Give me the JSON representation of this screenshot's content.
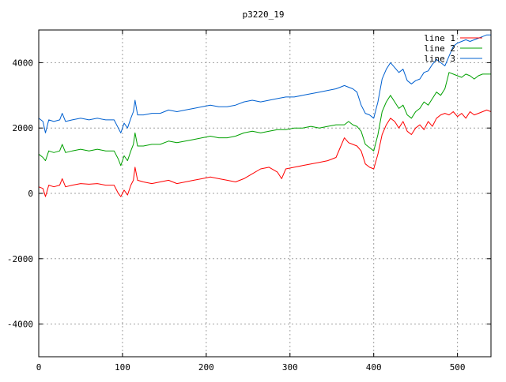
{
  "chart_data": {
    "type": "line",
    "title": "p3220_19",
    "xlabel": "",
    "ylabel": "",
    "xlim": [
      0,
      540
    ],
    "ylim": [
      -5000,
      5000
    ],
    "xticks": [
      0,
      100,
      200,
      300,
      400,
      500
    ],
    "yticks": [
      -4000,
      -2000,
      0,
      2000,
      4000
    ],
    "grid": true,
    "legend_position": "top-right",
    "series": [
      {
        "name": "line 1",
        "color": "#ff0000",
        "x": [
          0,
          5,
          8,
          12,
          18,
          25,
          28,
          32,
          40,
          50,
          60,
          70,
          80,
          90,
          95,
          98,
          102,
          106,
          110,
          113,
          115,
          118,
          125,
          135,
          145,
          155,
          165,
          175,
          185,
          195,
          205,
          215,
          225,
          235,
          245,
          255,
          265,
          275,
          285,
          290,
          295,
          305,
          315,
          325,
          335,
          345,
          355,
          360,
          365,
          370,
          375,
          380,
          385,
          390,
          395,
          400,
          405,
          410,
          415,
          420,
          425,
          430,
          435,
          440,
          445,
          450,
          455,
          460,
          465,
          470,
          475,
          480,
          485,
          490,
          495,
          500,
          505,
          510,
          515,
          520,
          525,
          530,
          535,
          540
        ],
        "y": [
          200,
          150,
          -100,
          250,
          200,
          250,
          450,
          200,
          250,
          300,
          280,
          300,
          250,
          250,
          0,
          -100,
          100,
          -50,
          250,
          400,
          800,
          400,
          350,
          300,
          350,
          400,
          300,
          350,
          400,
          450,
          500,
          450,
          400,
          350,
          450,
          600,
          750,
          800,
          650,
          450,
          750,
          800,
          850,
          900,
          950,
          1000,
          1100,
          1400,
          1700,
          1550,
          1500,
          1450,
          1300,
          900,
          800,
          750,
          1200,
          1800,
          2100,
          2300,
          2200,
          2000,
          2200,
          1900,
          1800,
          2000,
          2100,
          1950,
          2200,
          2050,
          2300,
          2400,
          2450,
          2400,
          2500,
          2350,
          2450,
          2300,
          2500,
          2400,
          2450,
          2500,
          2550,
          2500
        ]
      },
      {
        "name": "line 2",
        "color": "#00a000",
        "x": [
          0,
          5,
          8,
          12,
          18,
          25,
          28,
          32,
          40,
          50,
          60,
          70,
          80,
          90,
          95,
          98,
          102,
          106,
          110,
          113,
          115,
          118,
          125,
          135,
          145,
          155,
          165,
          175,
          185,
          195,
          205,
          215,
          225,
          235,
          245,
          255,
          265,
          275,
          285,
          295,
          305,
          315,
          325,
          335,
          345,
          355,
          365,
          370,
          375,
          380,
          385,
          390,
          395,
          400,
          405,
          410,
          415,
          420,
          425,
          430,
          435,
          440,
          445,
          450,
          455,
          460,
          465,
          470,
          475,
          480,
          485,
          490,
          495,
          500,
          505,
          510,
          515,
          520,
          525,
          530,
          535,
          540
        ],
        "y": [
          1200,
          1100,
          1000,
          1300,
          1250,
          1300,
          1500,
          1250,
          1300,
          1350,
          1300,
          1350,
          1300,
          1300,
          1050,
          850,
          1150,
          1000,
          1300,
          1500,
          1850,
          1450,
          1450,
          1500,
          1500,
          1600,
          1550,
          1600,
          1650,
          1700,
          1750,
          1700,
          1700,
          1750,
          1850,
          1900,
          1850,
          1900,
          1950,
          1950,
          2000,
          2000,
          2050,
          2000,
          2050,
          2100,
          2100,
          2200,
          2100,
          2050,
          1900,
          1500,
          1400,
          1300,
          1800,
          2500,
          2800,
          3000,
          2800,
          2600,
          2700,
          2400,
          2300,
          2500,
          2600,
          2800,
          2700,
          2900,
          3100,
          3000,
          3200,
          3700,
          3650,
          3600,
          3550,
          3650,
          3600,
          3500,
          3600,
          3650,
          3650,
          3650
        ]
      },
      {
        "name": "line 3",
        "color": "#0060d0",
        "x": [
          0,
          5,
          8,
          12,
          18,
          25,
          28,
          32,
          40,
          50,
          60,
          70,
          80,
          90,
          95,
          98,
          102,
          106,
          110,
          113,
          115,
          118,
          125,
          135,
          145,
          155,
          165,
          175,
          185,
          195,
          205,
          215,
          225,
          235,
          245,
          255,
          265,
          275,
          285,
          295,
          305,
          315,
          325,
          335,
          345,
          355,
          360,
          365,
          370,
          375,
          380,
          385,
          390,
          395,
          400,
          405,
          410,
          415,
          420,
          425,
          430,
          435,
          440,
          445,
          450,
          455,
          460,
          465,
          470,
          475,
          480,
          485,
          490,
          495,
          500,
          505,
          510,
          515,
          520,
          525,
          530,
          535,
          540
        ],
        "y": [
          2300,
          2200,
          1850,
          2250,
          2200,
          2250,
          2450,
          2200,
          2250,
          2300,
          2250,
          2300,
          2250,
          2250,
          2000,
          1850,
          2150,
          2000,
          2300,
          2500,
          2850,
          2400,
          2400,
          2450,
          2450,
          2550,
          2500,
          2550,
          2600,
          2650,
          2700,
          2650,
          2650,
          2700,
          2800,
          2850,
          2800,
          2850,
          2900,
          2950,
          2950,
          3000,
          3050,
          3100,
          3150,
          3200,
          3250,
          3300,
          3250,
          3200,
          3100,
          2700,
          2450,
          2400,
          2300,
          2800,
          3500,
          3800,
          4000,
          3850,
          3700,
          3800,
          3450,
          3350,
          3450,
          3500,
          3700,
          3750,
          3950,
          4100,
          4000,
          3900,
          4200,
          4500,
          4600,
          4650,
          4700,
          4650,
          4700,
          4750,
          4800,
          4850,
          4850
        ]
      }
    ]
  }
}
